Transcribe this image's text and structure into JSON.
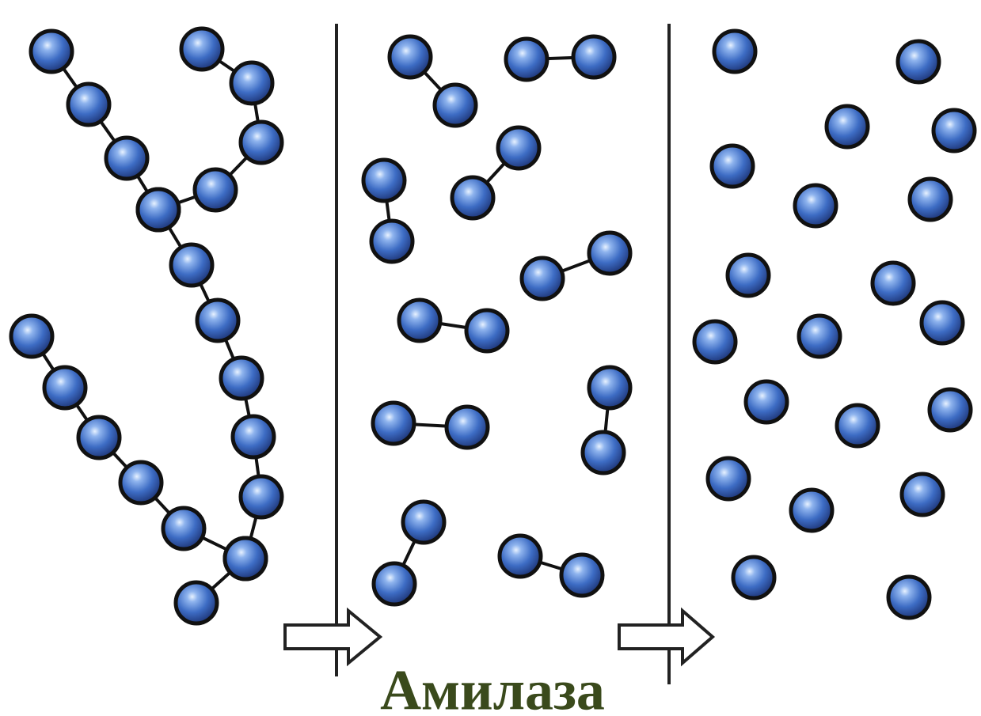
{
  "label": "Амилаза"
}
